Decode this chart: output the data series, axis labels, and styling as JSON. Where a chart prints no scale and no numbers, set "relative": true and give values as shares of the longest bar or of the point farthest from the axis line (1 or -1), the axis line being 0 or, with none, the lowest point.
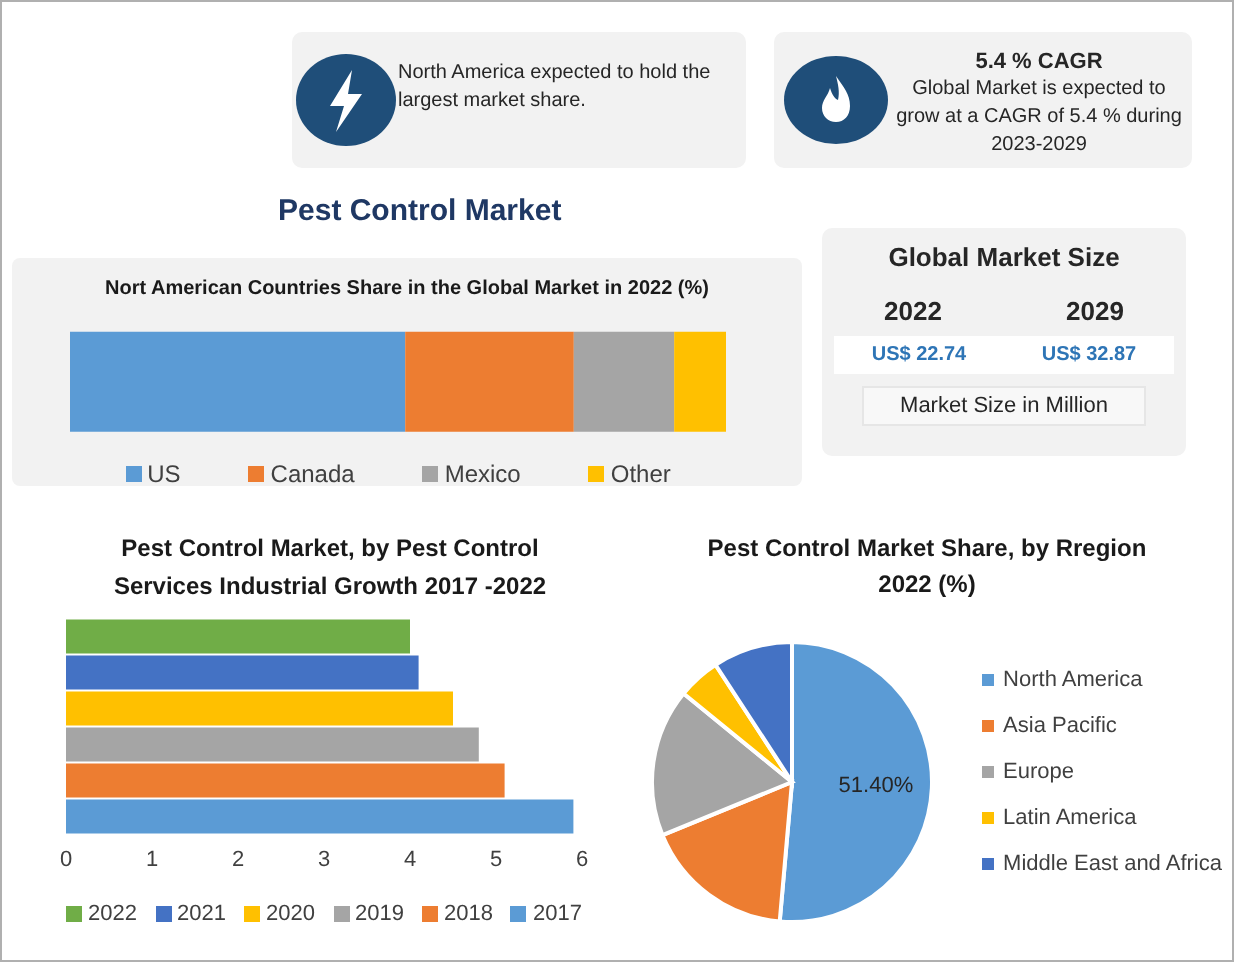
{
  "chart_data": [
    {
      "type": "bar",
      "title": "Pest Control Market",
      "subtitle": "Nort American Countries Share in the Global Market in 2022 (%)",
      "categories": [
        null
      ],
      "orientation": "horizontal",
      "stacked": true,
      "relative": true,
      "legend": "bottom",
      "series": [
        {
          "name": "US",
          "color": "#5b9bd5",
          "values": [
            0.511
          ]
        },
        {
          "name": "Canada",
          "color": "#ed7d31",
          "values": [
            0.257
          ]
        },
        {
          "name": "Mexico",
          "color": "#a5a5a5",
          "values": [
            0.153
          ]
        },
        {
          "name": "Other",
          "color": "#ffc000",
          "values": [
            0.079
          ]
        }
      ]
    },
    {
      "type": "bar",
      "title": "Pest Control Market, by Pest Control Services Industrial Growth 2017 -2022",
      "categories": [
        null,
        null,
        null,
        null,
        null,
        null
      ],
      "orientation": "horizontal",
      "stacked": true,
      "xlim": [
        0,
        6
      ],
      "xticks": [
        0,
        1,
        2,
        3,
        4,
        5,
        6
      ],
      "grid": false,
      "legend": "bottom",
      "series": [
        {
          "name": "2022",
          "color": "#70ad47",
          "values": [
            4.0,
            null,
            null,
            null,
            null,
            null
          ]
        },
        {
          "name": "2021",
          "color": "#4472c4",
          "values": [
            null,
            4.1,
            null,
            null,
            null,
            null
          ]
        },
        {
          "name": "2020",
          "color": "#ffc000",
          "values": [
            null,
            null,
            4.5,
            null,
            null,
            null
          ]
        },
        {
          "name": "2019",
          "color": "#a5a5a5",
          "values": [
            null,
            null,
            null,
            4.8,
            null,
            null
          ]
        },
        {
          "name": "2018",
          "color": "#ed7d31",
          "values": [
            null,
            null,
            null,
            null,
            5.1,
            null
          ]
        },
        {
          "name": "2017",
          "color": "#5b9bd5",
          "values": [
            null,
            null,
            null,
            null,
            null,
            5.9
          ]
        }
      ]
    },
    {
      "type": "pie",
      "title": "Pest Control Market Share, by Rregion 2022 (%)",
      "categories": [
        "North America",
        "Asia Pacific",
        "Europe",
        "Latin America",
        "Middle East and Africa"
      ],
      "values": [
        51.4,
        17.4,
        17.1,
        4.9,
        9.2
      ],
      "colors": [
        "#5b9bd5",
        "#ed7d31",
        "#a5a5a5",
        "#ffc000",
        "#4472c4"
      ],
      "value_labels": [
        "51.40%",
        null,
        null,
        null,
        null
      ],
      "legend": "right"
    },
    {
      "type": "other",
      "annotations": [
        "North America expected to hold the largest market share."
      ]
    },
    {
      "type": "other",
      "title": "5.4 % CAGR",
      "annotations": [
        "Global Market is expected to grow at a CAGR of 5.4 % during 2023-2029"
      ]
    },
    {
      "type": "other",
      "title": "Global Market Size",
      "categories": [
        "2022",
        "2029"
      ],
      "annotations": [
        "US$ 22.74",
        "US$ 32.87",
        "Market Size in Million"
      ]
    }
  ]
}
